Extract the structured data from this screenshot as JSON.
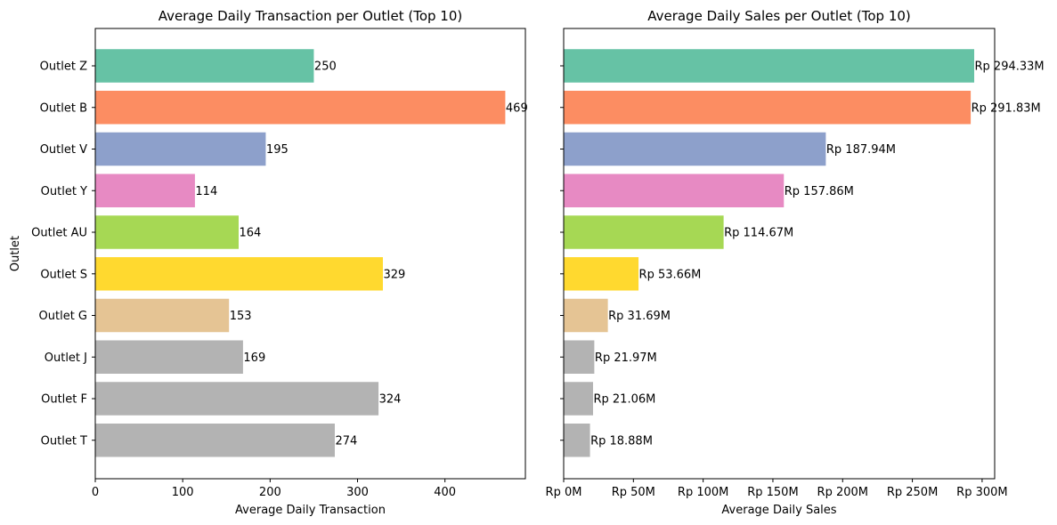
{
  "chart_data": [
    {
      "type": "bar",
      "orientation": "horizontal",
      "title": "Average Daily Transaction per Outlet (Top 10)",
      "xlabel": "Average Daily Transaction",
      "ylabel": "Outlet",
      "categories": [
        "Outlet Z",
        "Outlet B",
        "Outlet V",
        "Outlet Y",
        "Outlet AU",
        "Outlet S",
        "Outlet G",
        "Outlet J",
        "Outlet F",
        "Outlet T"
      ],
      "values": [
        250,
        469,
        195,
        114,
        164,
        329,
        153,
        169,
        324,
        274
      ],
      "data_labels": [
        "250",
        "469",
        "195",
        "114",
        "164",
        "329",
        "153",
        "169",
        "324",
        "274"
      ],
      "colors": [
        "#66c2a5",
        "#fc8d62",
        "#8da0cb",
        "#e78ac3",
        "#a6d854",
        "#ffd92f",
        "#e5c494",
        "#b3b3b3",
        "#b3b3b3",
        "#b3b3b3"
      ],
      "xlim": [
        0,
        492
      ],
      "xticks": [
        0,
        100,
        200,
        300,
        400
      ],
      "xtick_labels": [
        "0",
        "100",
        "200",
        "300",
        "400"
      ],
      "grid": false
    },
    {
      "type": "bar",
      "orientation": "horizontal",
      "title": "Average Daily Sales per Outlet (Top 10)",
      "xlabel": "Average Daily Sales",
      "ylabel": "",
      "categories": [
        "Outlet Z",
        "Outlet B",
        "Outlet V",
        "Outlet Y",
        "Outlet AU",
        "Outlet S",
        "Outlet G",
        "Outlet J",
        "Outlet F",
        "Outlet T"
      ],
      "values": [
        294.33,
        291.83,
        187.94,
        157.86,
        114.67,
        53.66,
        31.69,
        21.97,
        21.06,
        18.88
      ],
      "data_labels": [
        "Rp 294.33M",
        "Rp 291.83M",
        "Rp 187.94M",
        "Rp 157.86M",
        "Rp 114.67M",
        "Rp 53.66M",
        "Rp 31.69M",
        "Rp 21.97M",
        "Rp 21.06M",
        "Rp 18.88M"
      ],
      "colors": [
        "#66c2a5",
        "#fc8d62",
        "#8da0cb",
        "#e78ac3",
        "#a6d854",
        "#ffd92f",
        "#e5c494",
        "#b3b3b3",
        "#b3b3b3",
        "#b3b3b3"
      ],
      "xlim": [
        0,
        309
      ],
      "xticks": [
        0,
        50,
        100,
        150,
        200,
        250,
        300
      ],
      "xtick_labels": [
        "Rp 0M",
        "Rp 50M",
        "Rp 100M",
        "Rp 150M",
        "Rp 200M",
        "Rp 250M",
        "Rp 300M"
      ],
      "show_category_labels": false,
      "grid": false
    }
  ]
}
